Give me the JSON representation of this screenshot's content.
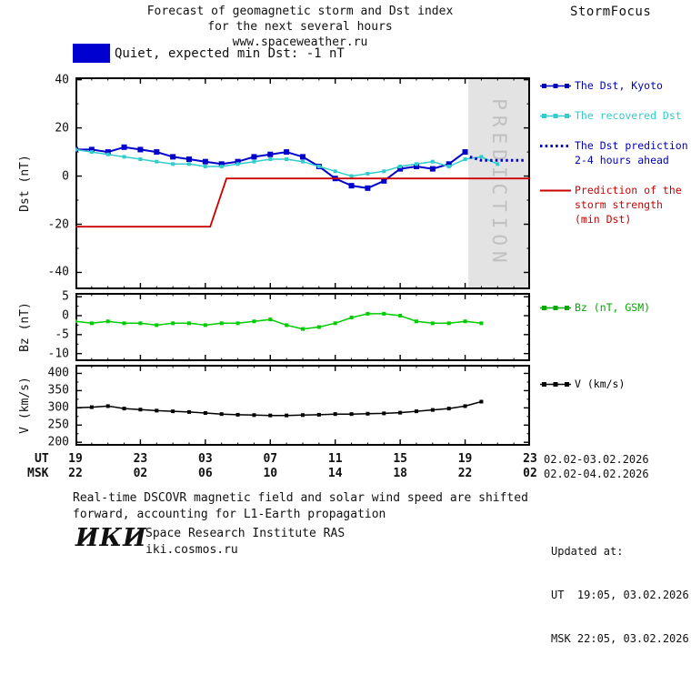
{
  "header": {
    "title_line1": "Forecast of geomagnetic storm and Dst index",
    "title_line2": "for the next several hours",
    "title_line3": "www.spaceweather.ru",
    "brand": "StormFocus"
  },
  "status": {
    "label": "Quiet, expected min Dst: -1 nT",
    "swatch_color": "#0000d0"
  },
  "chart_data": [
    {
      "type": "line",
      "name": "dst-panel",
      "ylabel": "Dst (nT)",
      "xlim": [
        0,
        28
      ],
      "ylim": [
        -47,
        41
      ],
      "yticks": [
        40,
        20,
        0,
        -20,
        -40
      ],
      "yticks_minor": [
        30,
        10,
        -10,
        -30
      ],
      "xticks": [
        0,
        4,
        8,
        12,
        16,
        20,
        24,
        28
      ],
      "xminor": 1,
      "x_unit": "hours from 19:00 UT 02.02.2026",
      "prediction_band": {
        "x_start": 24.2,
        "x_end": 28,
        "label": "PREDICTION"
      },
      "series": [
        {
          "id": "dst-kyoto",
          "name": "The Dst, Kyoto",
          "color": "#0000cc",
          "width": 2,
          "marker": "square",
          "marker_size": 6,
          "x_start": 0,
          "x_step": 1,
          "values": [
            11,
            11,
            10,
            12,
            11,
            10,
            8,
            7,
            6,
            5,
            6,
            8,
            9,
            10,
            8,
            4,
            -1,
            -4,
            -5,
            -2,
            3,
            4,
            3,
            5,
            10
          ]
        },
        {
          "id": "dst-recovered",
          "name": "The recovered Dst",
          "color": "#33cccc",
          "width": 1.5,
          "marker": "square",
          "marker_size": 4,
          "x_start": 0,
          "x_step": 1,
          "values": [
            11,
            10,
            9,
            8,
            7,
            6,
            5,
            5,
            4,
            4,
            5,
            6,
            7,
            7,
            6,
            4,
            2,
            0,
            1,
            2,
            4,
            5,
            6,
            4,
            7,
            8,
            5
          ]
        },
        {
          "id": "dst-prediction",
          "name": "The Dst prediction 2-4 hours ahead",
          "color": "#0000cc",
          "style": "dotted",
          "points": [
            [
              24.3,
              8
            ],
            [
              25,
              6.5
            ],
            [
              27.6,
              6.5
            ]
          ]
        },
        {
          "id": "storm-strength",
          "name": "Prediction of the storm strength (min Dst)",
          "color": "#cc0000",
          "width": 1.8,
          "points": [
            [
              0,
              -21
            ],
            [
              8.3,
              -21
            ],
            [
              9.3,
              -1
            ],
            [
              28,
              -1
            ]
          ]
        }
      ]
    },
    {
      "type": "line",
      "name": "bz-panel",
      "ylabel": "Bz (nT)",
      "xlim": [
        0,
        28
      ],
      "ylim": [
        -12,
        6
      ],
      "yticks": [
        5,
        0,
        -5,
        -10
      ],
      "yticks_minor": [
        2.5,
        -2.5,
        -7.5
      ],
      "xticks": [
        0,
        4,
        8,
        12,
        16,
        20,
        24,
        28
      ],
      "xminor": 1,
      "x_unit": "hours from 19:00 UT 02.02.2026",
      "series": [
        {
          "id": "bz-gsm",
          "name": "Bz (nT, GSM)",
          "color": "#00cc00",
          "width": 1.5,
          "marker": "square",
          "marker_size": 4,
          "x_start": 0,
          "x_step": 1,
          "values": [
            -1.5,
            -2,
            -1.5,
            -2,
            -2,
            -2.5,
            -2,
            -2,
            -2.5,
            -2,
            -2,
            -1.5,
            -1,
            -2.5,
            -3.5,
            -3,
            -2,
            -0.5,
            0.5,
            0.5,
            0,
            -1.5,
            -2,
            -2,
            -1.5,
            -2
          ]
        }
      ]
    },
    {
      "type": "line",
      "name": "v-panel",
      "ylabel": "V (km/s)",
      "xlim": [
        0,
        28
      ],
      "ylim": [
        190,
        425
      ],
      "yticks": [
        400,
        350,
        300,
        250,
        200
      ],
      "yticks_minor": [
        375,
        325,
        275,
        225
      ],
      "xticks": [
        0,
        4,
        8,
        12,
        16,
        20,
        24,
        28
      ],
      "xminor": 1,
      "x_unit": "hours from 19:00 UT 02.02.2026",
      "series": [
        {
          "id": "v-speed",
          "name": "V (km/s)",
          "color": "#000000",
          "width": 1.5,
          "marker": "square",
          "marker_size": 4,
          "x_start": 0,
          "x_step": 1,
          "values": [
            300,
            302,
            305,
            298,
            295,
            292,
            290,
            288,
            285,
            282,
            280,
            279,
            278,
            278,
            279,
            280,
            282,
            282,
            283,
            284,
            286,
            290,
            294,
            298,
            305,
            318
          ]
        }
      ]
    }
  ],
  "axis": {
    "ut_label": "UT",
    "msk_label": "MSK",
    "tick_hours": [
      0,
      4,
      8,
      12,
      16,
      20,
      24,
      28
    ],
    "ut_ticks": [
      "19",
      "23",
      "03",
      "07",
      "11",
      "15",
      "19",
      "23"
    ],
    "msk_ticks": [
      "22",
      "02",
      "06",
      "10",
      "14",
      "18",
      "22",
      "02"
    ],
    "ut_date_range": "02.02-03.02.2026",
    "msk_date_range": "02.02-04.02.2026"
  },
  "legend": {
    "dst": [
      {
        "lines": [
          "The Dst, Kyoto"
        ],
        "color": "#0000bb",
        "marker": "squares-line"
      },
      {
        "lines": [
          "The recovered Dst"
        ],
        "color": "#33cccc",
        "marker": "squares-line"
      },
      {
        "lines": [
          "The Dst prediction",
          "2-4 hours ahead"
        ],
        "color": "#0000bb",
        "marker": "dotted-line"
      },
      {
        "lines": [
          "Prediction of the",
          "storm strength",
          "(min Dst)"
        ],
        "color": "#cc0000",
        "marker": "line"
      }
    ],
    "bz": [
      {
        "lines": [
          "Bz (nT, GSM)"
        ],
        "color": "#00aa00",
        "marker": "squares-line"
      }
    ],
    "v": [
      {
        "lines": [
          "V (km/s)"
        ],
        "color": "#000000",
        "marker": "squares-line"
      }
    ]
  },
  "footer": {
    "note_line1": "Real-time DSCOVR magnetic field and solar wind speed are shifted",
    "note_line2": "forward, accounting for L1-Earth propagation",
    "updated_line1": "Updated at:",
    "updated_line2": "UT  19:05, 03.02.2026",
    "updated_line3": "MSK 22:05, 03.02.2026",
    "logo": "ИКИ",
    "institute": "Space Research Institute RAS",
    "site": "iki.cosmos.ru"
  }
}
